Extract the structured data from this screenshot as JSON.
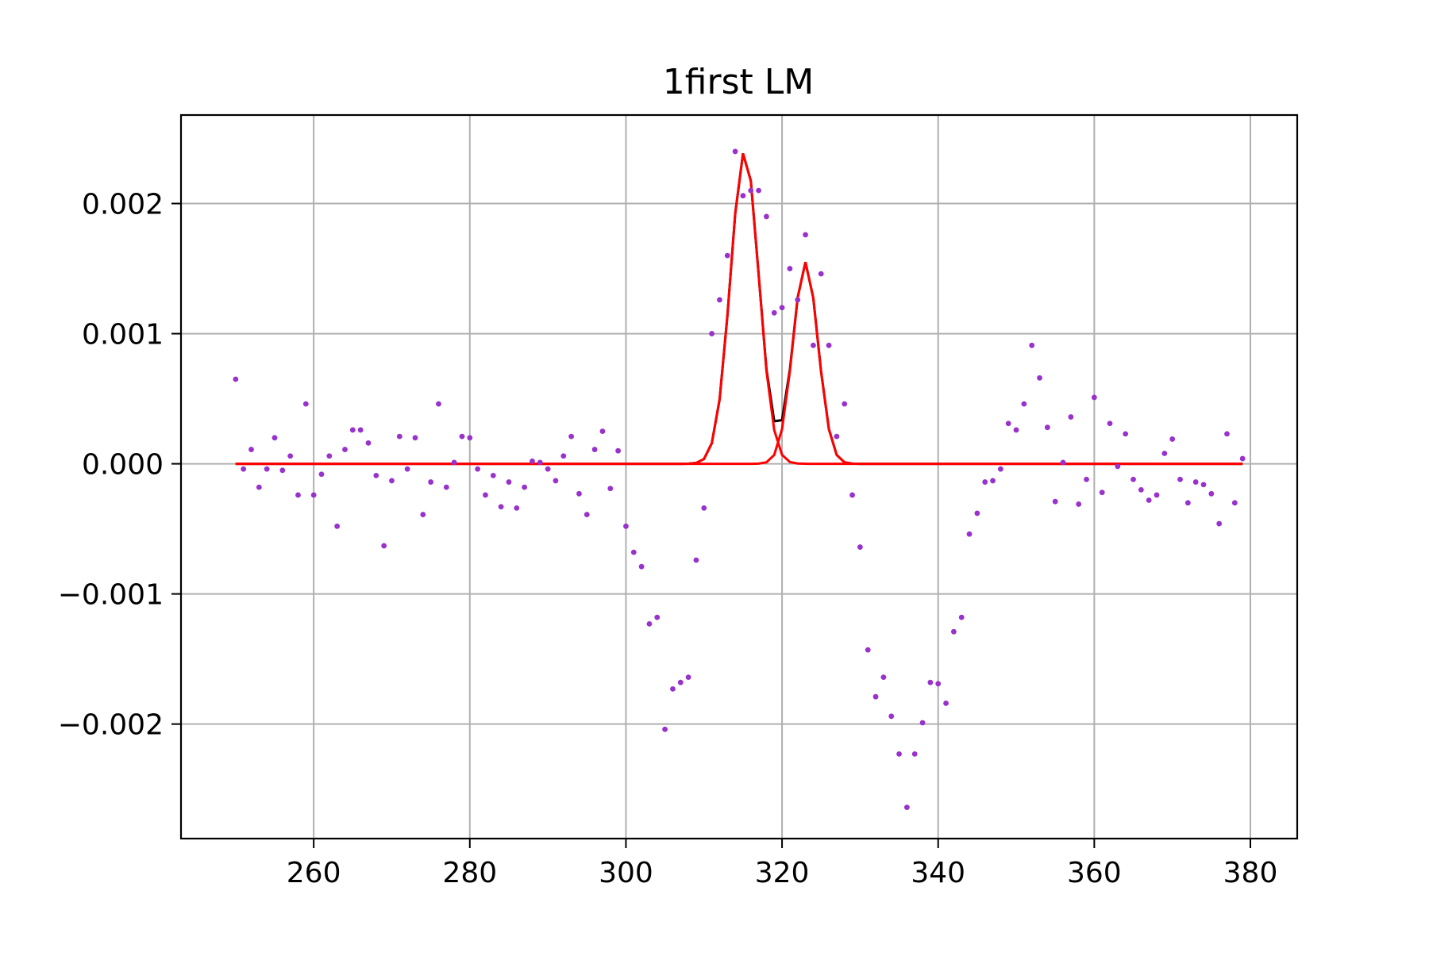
{
  "chart_data": {
    "type": "scatter",
    "title": "1first LM",
    "xlabel": "",
    "ylabel": "",
    "xlim": [
      243,
      386
    ],
    "ylim": [
      -0.00288,
      0.00268
    ],
    "grid": true,
    "x_ticks": [
      {
        "value": 260,
        "label": "260"
      },
      {
        "value": 280,
        "label": "280"
      },
      {
        "value": 300,
        "label": "300"
      },
      {
        "value": 320,
        "label": "320"
      },
      {
        "value": 340,
        "label": "340"
      },
      {
        "value": 360,
        "label": "360"
      },
      {
        "value": 380,
        "label": "380"
      }
    ],
    "y_ticks": [
      {
        "value": 0.002,
        "label": "0.002"
      },
      {
        "value": 0.001,
        "label": "0.001"
      },
      {
        "value": 0.0,
        "label": "0.000"
      },
      {
        "value": -0.001,
        "label": "−0.001"
      },
      {
        "value": -0.002,
        "label": "−0.002"
      }
    ],
    "colors": {
      "points": "#9932cc",
      "sum_fit": "#000000",
      "component_fit": "#ff0000",
      "grid": "#b0b0b0",
      "axes": "#000000"
    },
    "points": {
      "x": [
        250,
        251,
        252,
        253,
        254,
        255,
        256,
        257,
        258,
        259,
        260,
        261,
        262,
        263,
        264,
        265,
        266,
        267,
        268,
        269,
        270,
        271,
        272,
        273,
        274,
        275,
        276,
        277,
        278,
        279,
        280,
        281,
        282,
        283,
        284,
        285,
        286,
        287,
        288,
        289,
        290,
        291,
        292,
        293,
        294,
        295,
        296,
        297,
        298,
        299,
        300,
        301,
        302,
        303,
        304,
        305,
        306,
        307,
        308,
        309,
        310,
        311,
        312,
        313,
        314,
        315,
        316,
        317,
        318,
        319,
        320,
        321,
        322,
        323,
        324,
        325,
        326,
        327,
        328,
        329,
        330,
        331,
        332,
        333,
        334,
        335,
        336,
        337,
        338,
        339,
        340,
        341,
        342,
        343,
        344,
        345,
        346,
        347,
        348,
        349,
        350,
        351,
        352,
        353,
        354,
        355,
        356,
        357,
        358,
        359,
        360,
        361,
        362,
        363,
        364,
        365,
        366,
        367,
        368,
        369,
        370,
        371,
        372,
        373,
        374,
        375,
        376,
        377,
        378,
        379
      ],
      "y": [
        0.00065,
        -4e-05,
        0.00011,
        -0.00018,
        -4e-05,
        0.0002,
        -5e-05,
        6e-05,
        -0.00024,
        0.00046,
        -0.00024,
        -8e-05,
        6e-05,
        -0.00048,
        0.00011,
        0.00026,
        0.00026,
        0.00016,
        -9e-05,
        -0.00063,
        -0.00013,
        0.00021,
        -4e-05,
        0.0002,
        -0.00039,
        -0.00014,
        0.00046,
        -0.00018,
        1e-05,
        0.00021,
        0.0002,
        -4e-05,
        -0.00024,
        -9e-05,
        -0.00033,
        -0.00014,
        -0.00034,
        -0.00018,
        2e-05,
        1e-05,
        -4e-05,
        -0.00013,
        6e-05,
        0.00021,
        -0.00023,
        -0.00039,
        0.00011,
        0.00025,
        -0.00019,
        0.0001,
        -0.00048,
        -0.00068,
        -0.00079,
        -0.00123,
        -0.00118,
        -0.00204,
        -0.00173,
        -0.00168,
        -0.00164,
        -0.00074,
        -0.00034,
        0.001,
        0.00126,
        0.0016,
        0.0024,
        0.00206,
        0.0021,
        0.0021,
        0.0019,
        0.00116,
        0.0012,
        0.0015,
        0.00126,
        0.00176,
        0.00091,
        0.00146,
        0.00091,
        0.00021,
        0.00046,
        -0.00024,
        -0.00064,
        -0.00143,
        -0.00179,
        -0.00164,
        -0.00194,
        -0.00223,
        -0.00264,
        -0.00223,
        -0.00199,
        -0.00168,
        -0.00169,
        -0.00184,
        -0.00129,
        -0.00118,
        -0.00054,
        -0.00038,
        -0.00014,
        -0.00013,
        -4e-05,
        0.00031,
        0.00026,
        0.00046,
        0.00091,
        0.00066,
        0.00028,
        -0.00029,
        1e-05,
        0.00036,
        -0.00031,
        -0.00012,
        0.00051,
        -0.00022,
        0.00031,
        -2e-05,
        0.00023,
        -0.00012,
        -0.0002,
        -0.00028,
        -0.00024,
        8e-05,
        0.00019,
        -0.00012,
        -0.0003,
        -0.00014,
        -0.00016,
        -0.00023,
        -0.00046,
        0.00023,
        -0.0003,
        4e-05
      ]
    },
    "fit_components": [
      {
        "amplitude": 0.0024,
        "center": 315.2,
        "sigma": 1.8
      },
      {
        "amplitude": 0.00155,
        "center": 323.0,
        "sigma": 1.6
      }
    ],
    "fit_x_range": [
      250,
      379
    ]
  }
}
